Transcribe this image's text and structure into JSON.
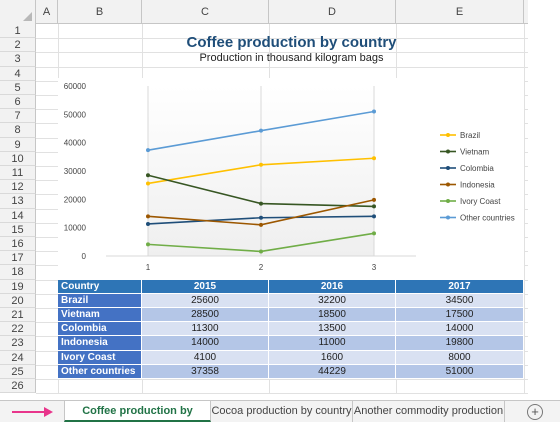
{
  "columns": [
    "A",
    "B",
    "C",
    "D",
    "E"
  ],
  "rows": [
    "1",
    "2",
    "3",
    "4",
    "5",
    "6",
    "7",
    "8",
    "9",
    "10",
    "11",
    "12",
    "13",
    "14",
    "15",
    "16",
    "17",
    "18",
    "19",
    "20",
    "21",
    "22",
    "23",
    "24",
    "25",
    "26"
  ],
  "sheet_title": "Coffee production by country",
  "sheet_subtitle": "Production in thousand kilogram bags",
  "table": {
    "headers": [
      "Country",
      "2015",
      "2016",
      "2017"
    ],
    "rows": [
      {
        "country": "Brazil",
        "values": [
          "25600",
          "32200",
          "34500"
        ]
      },
      {
        "country": "Vietnam",
        "values": [
          "28500",
          "18500",
          "17500"
        ]
      },
      {
        "country": "Colombia",
        "values": [
          "11300",
          "13500",
          "14000"
        ]
      },
      {
        "country": "Indonesia",
        "values": [
          "14000",
          "11000",
          "19800"
        ]
      },
      {
        "country": "Ivory Coast",
        "values": [
          "4100",
          "1600",
          "8000"
        ]
      },
      {
        "country": "Other countries",
        "values": [
          "37358",
          "44229",
          "51000"
        ]
      }
    ]
  },
  "chart_data": {
    "type": "line",
    "title": "",
    "xlabel": "",
    "ylabel": "",
    "x": [
      1,
      2,
      3
    ],
    "x_tick_labels": [
      "1",
      "2",
      "3"
    ],
    "y_tick_labels": [
      "0",
      "10000",
      "20000",
      "30000",
      "40000",
      "50000",
      "60000"
    ],
    "ylim": [
      0,
      60000
    ],
    "grid": "vertical",
    "legend": "right",
    "series": [
      {
        "name": "Brazil",
        "values": [
          25600,
          32200,
          34500
        ],
        "color": "#ffc000"
      },
      {
        "name": "Vietnam",
        "values": [
          28500,
          18500,
          17500
        ],
        "color": "#375623"
      },
      {
        "name": "Colombia",
        "values": [
          11300,
          13500,
          14000
        ],
        "color": "#1f4e79"
      },
      {
        "name": "Indonesia",
        "values": [
          14000,
          11000,
          19800
        ],
        "color": "#9c5700"
      },
      {
        "name": "Ivory Coast",
        "values": [
          4100,
          1600,
          8000
        ],
        "color": "#70ad47"
      },
      {
        "name": "Other countries",
        "values": [
          37358,
          44229,
          51000
        ],
        "color": "#5b9bd5"
      }
    ]
  },
  "tabs": [
    {
      "label": "Coffee production by country",
      "active": true
    },
    {
      "label": "Cocoa production by country",
      "active": false
    },
    {
      "label": "Another commodity production",
      "active": false
    }
  ],
  "add_tab_symbol": "+",
  "colors": {
    "accent_green": "#217346",
    "title_blue": "#1f4e79",
    "table_header": "#2e75b6",
    "arrow_pink": "#e8358b"
  }
}
